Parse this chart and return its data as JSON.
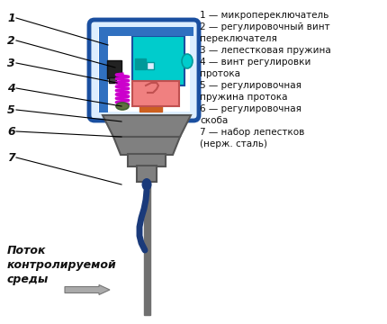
{
  "background_color": "#ffffff",
  "legend_lines": [
    "1 — микропереключатель",
    "2 — регулировочный винт",
    "переключателя",
    "3 — лепестковая пружина",
    "4 — винт регулировки",
    "протока",
    "5 — регулировочная",
    "пружина протока",
    "6 — регулировочная",
    "скоба",
    "7 — набор лепестков",
    "(нерж. сталь)"
  ],
  "flow_text_lines": [
    "Поток",
    "контролируемой",
    "среды"
  ],
  "label_numbers": [
    "1",
    "2",
    "3",
    "4",
    "5",
    "6",
    "7"
  ],
  "colors": {
    "blue_border": "#1a4fa0",
    "blue_fill": "#3070c0",
    "housing_bg": "#ddeeff",
    "white": "#ffffff",
    "cyan": "#00cccc",
    "cyan_dark": "#009999",
    "pink": "#f08080",
    "pink_dark": "#c05050",
    "magenta": "#cc00cc",
    "gray": "#808080",
    "gray_dark": "#555555",
    "gray_mid": "#707070",
    "dark_blue": "#1a3a7a",
    "orange": "#cc6020",
    "black": "#111111",
    "arrow_gray": "#aaaaaa",
    "arrow_edge": "#777777",
    "line_black": "#000000",
    "green_dark": "#406030"
  }
}
